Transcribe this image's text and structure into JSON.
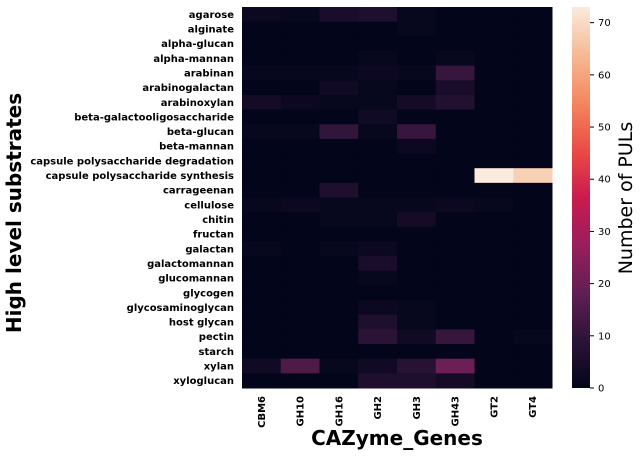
{
  "chart_data": {
    "type": "heatmap",
    "xlabel": "CAZyme_Genes",
    "ylabel": "High level substrates",
    "colorbar_label": "Number of PULs",
    "colorbar_ticks": [
      "0",
      "10",
      "20",
      "30",
      "40",
      "50",
      "60",
      "70"
    ],
    "colorbar_range": [
      0,
      73
    ],
    "colormap": "rocket",
    "columns": [
      "CBM6",
      "GH10",
      "GH16",
      "GH2",
      "GH3",
      "GH43",
      "GT2",
      "GT4"
    ],
    "rows": [
      "agarose",
      "alginate",
      "alpha-glucan",
      "alpha-mannan",
      "arabinan",
      "arabinogalactan",
      "arabinoxylan",
      "beta-galactooligosaccharide",
      "beta-glucan",
      "beta-mannan",
      "capsule polysaccharide degradation",
      "capsule polysaccharide synthesis",
      "carrageenan",
      "cellulose",
      "chitin",
      "fructan",
      "galactan",
      "galactomannan",
      "glucomannan",
      "glycogen",
      "glycosaminoglycan",
      "host glycan",
      "pectin",
      "starch",
      "xylan",
      "xyloglucan"
    ],
    "values": [
      [
        2,
        1,
        5,
        6,
        1,
        0,
        0,
        0
      ],
      [
        0,
        0,
        0,
        0,
        1,
        0,
        0,
        0
      ],
      [
        0,
        0,
        0,
        0,
        0,
        0,
        0,
        0
      ],
      [
        0,
        0,
        0,
        1,
        0,
        1,
        0,
        0
      ],
      [
        1,
        1,
        1,
        2,
        1,
        11,
        0,
        0
      ],
      [
        0,
        0,
        3,
        1,
        0,
        5,
        0,
        0
      ],
      [
        4,
        2,
        1,
        1,
        4,
        7,
        0,
        0
      ],
      [
        0,
        0,
        0,
        3,
        0,
        0,
        0,
        0
      ],
      [
        1,
        1,
        10,
        1,
        11,
        0,
        0,
        0
      ],
      [
        0,
        0,
        0,
        0,
        2,
        0,
        0,
        0
      ],
      [
        0,
        0,
        0,
        0,
        0,
        0,
        0,
        0
      ],
      [
        0,
        0,
        0,
        0,
        0,
        0,
        73,
        68
      ],
      [
        0,
        0,
        6,
        0,
        0,
        0,
        0,
        0
      ],
      [
        1,
        2,
        1,
        1,
        1,
        2,
        1,
        0
      ],
      [
        0,
        0,
        1,
        1,
        4,
        0,
        0,
        0
      ],
      [
        0,
        0,
        0,
        0,
        0,
        0,
        0,
        0
      ],
      [
        1,
        0,
        1,
        2,
        0,
        0,
        0,
        0
      ],
      [
        0,
        0,
        0,
        5,
        0,
        0,
        0,
        0
      ],
      [
        0,
        0,
        0,
        1,
        0,
        0,
        0,
        0
      ],
      [
        0,
        0,
        0,
        0,
        0,
        0,
        0,
        0
      ],
      [
        0,
        0,
        0,
        2,
        1,
        0,
        0,
        0
      ],
      [
        0,
        0,
        0,
        6,
        1,
        0,
        0,
        0
      ],
      [
        0,
        0,
        0,
        9,
        3,
        11,
        0,
        1
      ],
      [
        0,
        0,
        0,
        0,
        0,
        0,
        0,
        0
      ],
      [
        3,
        15,
        1,
        3,
        8,
        20,
        0,
        0
      ],
      [
        0,
        0,
        0,
        6,
        6,
        4,
        0,
        0
      ]
    ]
  }
}
